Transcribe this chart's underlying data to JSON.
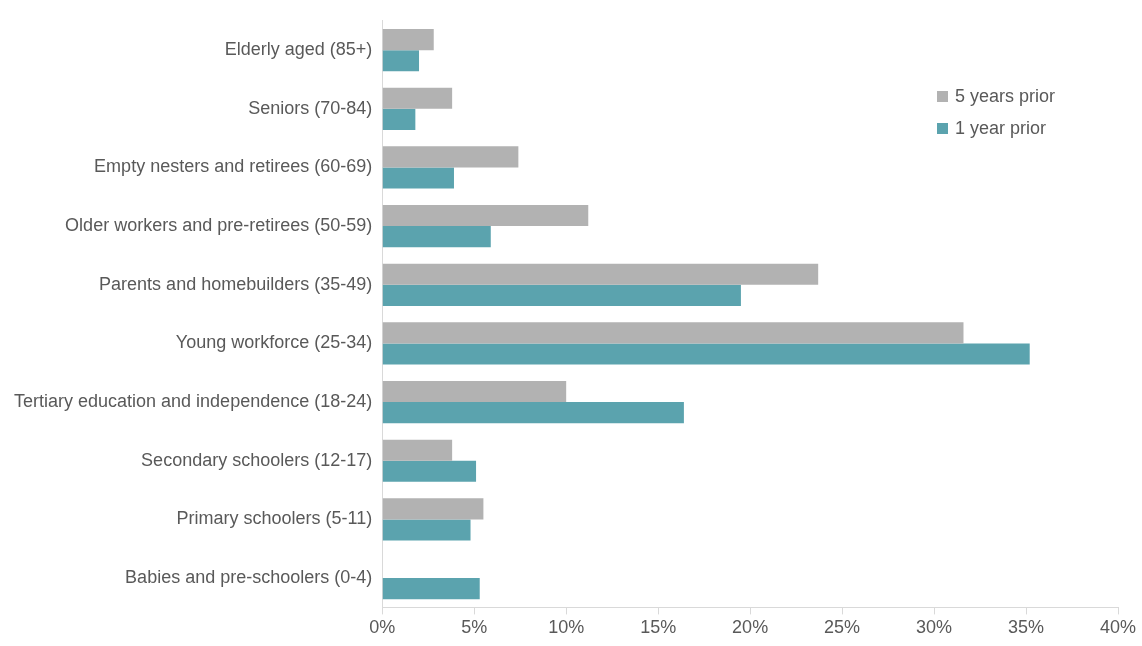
{
  "chart_data": {
    "type": "bar",
    "orientation": "horizontal",
    "categories": [
      "Elderly aged (85+)",
      "Seniors (70-84)",
      "Empty nesters and retirees (60-69)",
      "Older workers and pre-retirees (50-59)",
      "Parents and homebuilders (35-49)",
      "Young workforce (25-34)",
      "Tertiary education and independence (18-24)",
      "Secondary schoolers (12-17)",
      "Primary schoolers (5-11)",
      "Babies and pre-schoolers (0-4)"
    ],
    "series": [
      {
        "name": "5 years prior",
        "color": "#b2b2b2",
        "values": [
          2.8,
          3.8,
          7.4,
          11.2,
          23.7,
          31.6,
          10.0,
          3.8,
          5.5,
          null
        ]
      },
      {
        "name": "1 year prior",
        "color": "#5ba3ae",
        "values": [
          2.0,
          1.8,
          3.9,
          5.9,
          19.5,
          35.2,
          16.4,
          5.1,
          4.8,
          5.3
        ]
      }
    ],
    "xlim": [
      0,
      40
    ],
    "xticks": [
      {
        "value": 0,
        "label": "0%"
      },
      {
        "value": 5,
        "label": "5%"
      },
      {
        "value": 10,
        "label": "10%"
      },
      {
        "value": 15,
        "label": "15%"
      },
      {
        "value": 20,
        "label": "20%"
      },
      {
        "value": 25,
        "label": "25%"
      },
      {
        "value": 30,
        "label": "30%"
      },
      {
        "value": 35,
        "label": "35%"
      },
      {
        "value": 40,
        "label": "40%"
      }
    ],
    "grid": false,
    "legend": "top right"
  }
}
